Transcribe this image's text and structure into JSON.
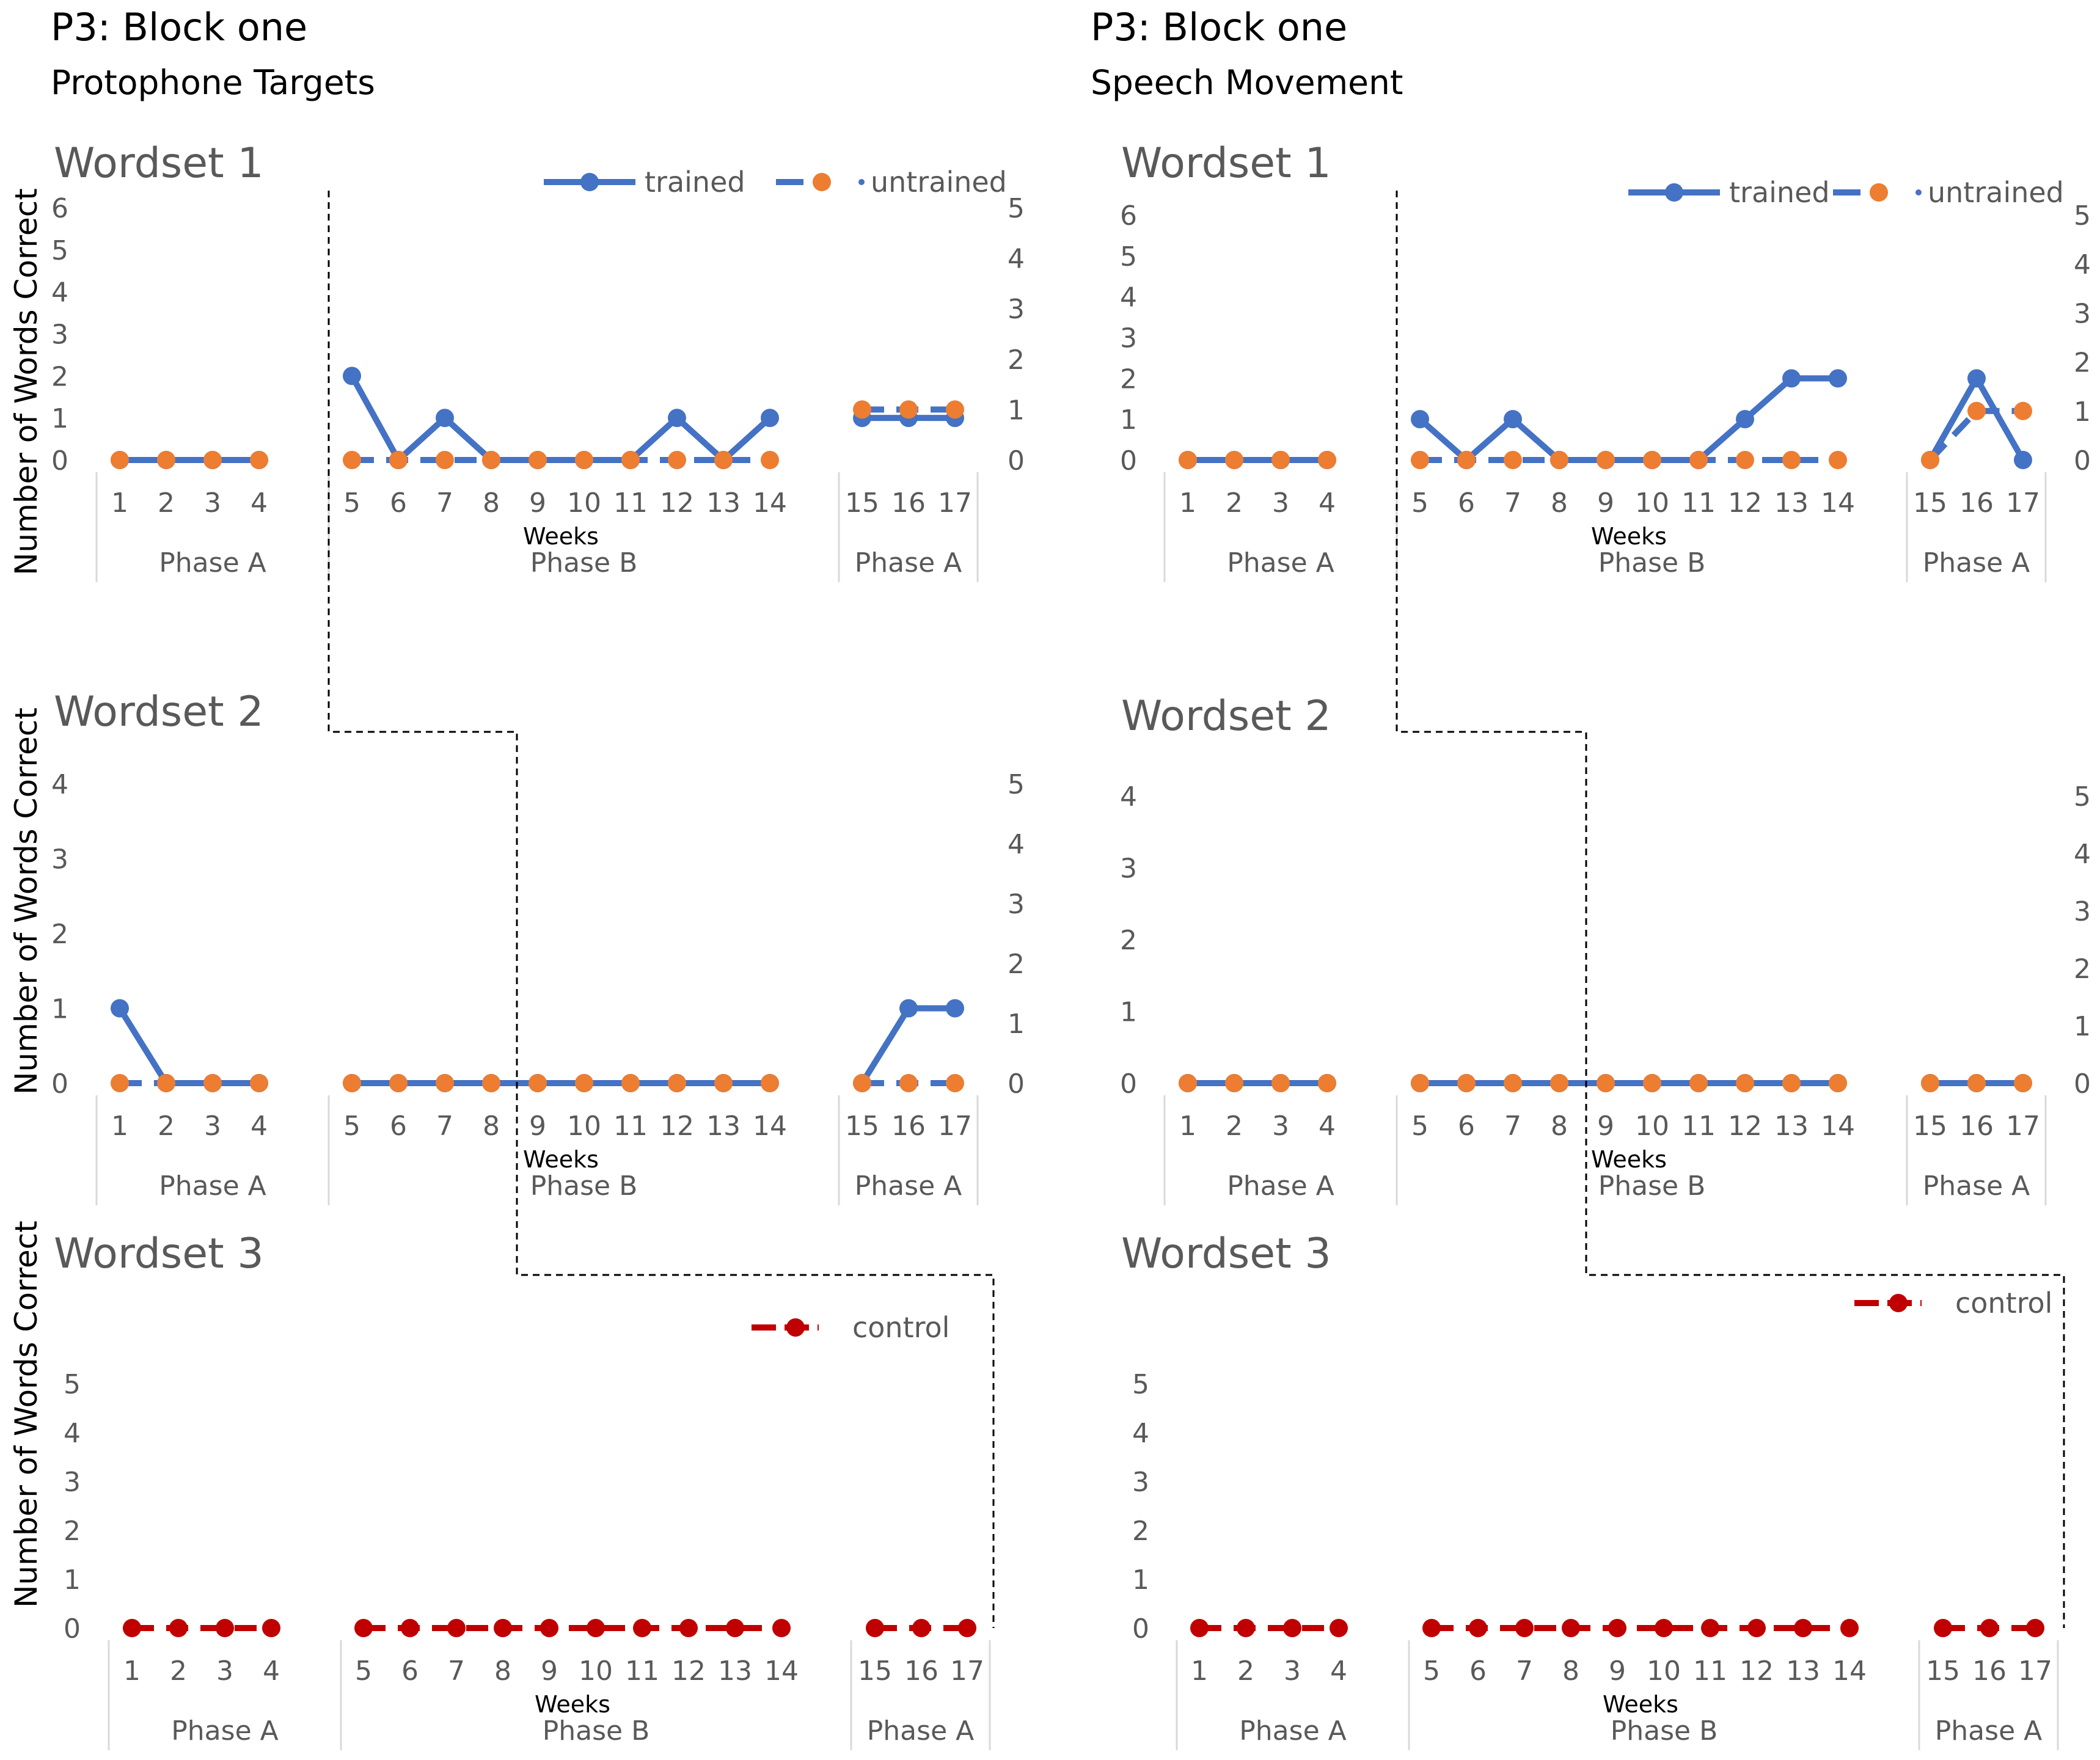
{
  "figure": {
    "left": {
      "heading": "P3: Block one",
      "subheading": "Protophone Targets"
    },
    "right": {
      "heading": "P3: Block one",
      "subheading": "Speech Movement"
    }
  },
  "colors": {
    "trained": "#4472C4",
    "untrained": "#ED7D31",
    "control": "#C00000",
    "axis_text": "#595959",
    "divider": "#D9D9D9"
  },
  "chart_data": [
    {
      "id": "pt-ws1",
      "type": "line",
      "title": "Wordset 1",
      "ylabel": "Number of Words Correct",
      "xlabel": "Weeks",
      "x": [
        1,
        2,
        3,
        4,
        5,
        6,
        7,
        8,
        9,
        10,
        11,
        12,
        13,
        14,
        15,
        16,
        17
      ],
      "x_tick_labels": [
        "1",
        "2",
        "3",
        "4",
        "5",
        "6",
        "7",
        "8",
        "9",
        "10",
        "11",
        "12",
        "13",
        "14",
        "15",
        "16",
        "17"
      ],
      "phases": [
        "Phase A",
        "Phase B",
        "Phase A"
      ],
      "ylim_left": [
        0,
        6
      ],
      "y_ticks_left": [
        "0",
        "1",
        "2",
        "3",
        "4",
        "5",
        "6"
      ],
      "ylim_right": [
        0,
        5
      ],
      "y_ticks_right": [
        "0",
        "1",
        "2",
        "3",
        "4",
        "5"
      ],
      "legend": [
        "trained",
        "untrained"
      ],
      "series": [
        {
          "name": "trained",
          "axis": "left",
          "values": [
            0,
            0,
            0,
            0,
            2,
            0,
            1,
            0,
            0,
            0,
            0,
            1,
            0,
            1,
            1,
            1,
            1
          ]
        },
        {
          "name": "untrained",
          "axis": "right",
          "values": [
            0,
            0,
            0,
            0,
            0,
            0,
            0,
            0,
            0,
            0,
            0,
            0,
            0,
            0,
            1,
            1,
            1
          ]
        }
      ]
    },
    {
      "id": "pt-ws2",
      "type": "line",
      "title": "Wordset 2",
      "ylabel": "Number of Words Correct",
      "xlabel": "Weeks",
      "x": [
        1,
        2,
        3,
        4,
        5,
        6,
        7,
        8,
        9,
        10,
        11,
        12,
        13,
        14,
        15,
        16,
        17
      ],
      "x_tick_labels": [
        "1",
        "2",
        "3",
        "4",
        "5",
        "6",
        "7",
        "8",
        "9",
        "10",
        "11",
        "12",
        "13",
        "14",
        "15",
        "16",
        "17"
      ],
      "phases": [
        "Phase A",
        "Phase B",
        "Phase A"
      ],
      "ylim_left": [
        0,
        4
      ],
      "y_ticks_left": [
        "0",
        "1",
        "2",
        "3",
        "4"
      ],
      "ylim_right": [
        0,
        5
      ],
      "y_ticks_right": [
        "0",
        "1",
        "2",
        "3",
        "4",
        "5"
      ],
      "legend": [],
      "series": [
        {
          "name": "trained",
          "axis": "left",
          "values": [
            1,
            0,
            0,
            0,
            0,
            0,
            0,
            0,
            0,
            0,
            0,
            0,
            0,
            0,
            0,
            1,
            1
          ]
        },
        {
          "name": "untrained",
          "axis": "right",
          "values": [
            0,
            0,
            0,
            0,
            0,
            0,
            0,
            0,
            0,
            0,
            0,
            0,
            0,
            0,
            0,
            0,
            0
          ]
        }
      ]
    },
    {
      "id": "pt-ws3",
      "type": "line",
      "title": "Wordset 3",
      "ylabel": "Number of Words Correct",
      "xlabel": "Weeks",
      "x": [
        1,
        2,
        3,
        4,
        5,
        6,
        7,
        8,
        9,
        10,
        11,
        12,
        13,
        14,
        15,
        16,
        17
      ],
      "x_tick_labels": [
        "1",
        "2",
        "3",
        "4",
        "5",
        "6",
        "7",
        "8",
        "9",
        "10",
        "11",
        "12",
        "13",
        "14",
        "15",
        "16",
        "17"
      ],
      "phases": [
        "Phase A",
        "Phase B",
        "Phase A"
      ],
      "ylim_left": [
        0,
        5
      ],
      "y_ticks_left": [
        "0",
        "1",
        "2",
        "3",
        "4",
        "5"
      ],
      "legend": [
        "control"
      ],
      "series": [
        {
          "name": "control",
          "axis": "left",
          "values": [
            0,
            0,
            0,
            0,
            0,
            0,
            0,
            0,
            0,
            0,
            0,
            0,
            0,
            0,
            0,
            0,
            0
          ]
        }
      ]
    },
    {
      "id": "sm-ws1",
      "type": "line",
      "title": "Wordset 1",
      "ylabel": "",
      "xlabel": "Weeks",
      "x": [
        1,
        2,
        3,
        4,
        5,
        6,
        7,
        8,
        9,
        10,
        11,
        12,
        13,
        14,
        15,
        16,
        17
      ],
      "x_tick_labels": [
        "1",
        "2",
        "3",
        "4",
        "5",
        "6",
        "7",
        "8",
        "9",
        "10",
        "11",
        "12",
        "13",
        "14",
        "15",
        "16",
        "17"
      ],
      "phases": [
        "Phase A",
        "Phase B",
        "Phase A"
      ],
      "ylim_left": [
        0,
        6
      ],
      "y_ticks_left": [
        "0",
        "1",
        "2",
        "3",
        "4",
        "5",
        "6"
      ],
      "ylim_right": [
        0,
        5
      ],
      "y_ticks_right": [
        "0",
        "1",
        "2",
        "3",
        "4",
        "5"
      ],
      "legend": [
        "trained",
        "untrained"
      ],
      "series": [
        {
          "name": "trained",
          "axis": "left",
          "values": [
            0,
            0,
            0,
            0,
            1,
            0,
            1,
            0,
            0,
            0,
            0,
            1,
            2,
            2,
            0,
            2,
            0
          ]
        },
        {
          "name": "untrained",
          "axis": "right",
          "values": [
            0,
            0,
            0,
            0,
            0,
            0,
            0,
            0,
            0,
            0,
            0,
            0,
            0,
            0,
            0,
            1,
            1
          ]
        }
      ]
    },
    {
      "id": "sm-ws2",
      "type": "line",
      "title": "Wordset 2",
      "ylabel": "",
      "xlabel": "Weeks",
      "x": [
        1,
        2,
        3,
        4,
        5,
        6,
        7,
        8,
        9,
        10,
        11,
        12,
        13,
        14,
        15,
        16,
        17
      ],
      "x_tick_labels": [
        "1",
        "2",
        "3",
        "4",
        "5",
        "6",
        "7",
        "8",
        "9",
        "10",
        "11",
        "12",
        "13",
        "14",
        "15",
        "16",
        "17"
      ],
      "phases": [
        "Phase A",
        "Phase B",
        "Phase A"
      ],
      "ylim_left": [
        0,
        4
      ],
      "y_ticks_left": [
        "0",
        "1",
        "2",
        "3",
        "4"
      ],
      "ylim_right": [
        0,
        5
      ],
      "y_ticks_right": [
        "0",
        "1",
        "2",
        "3",
        "4",
        "5"
      ],
      "legend": [],
      "series": [
        {
          "name": "trained",
          "axis": "left",
          "values": [
            0,
            0,
            0,
            0,
            0,
            0,
            0,
            0,
            0,
            0,
            0,
            0,
            0,
            0,
            0,
            0,
            0
          ]
        },
        {
          "name": "untrained",
          "axis": "right",
          "values": [
            0,
            0,
            0,
            0,
            0,
            0,
            0,
            0,
            0,
            0,
            0,
            0,
            0,
            0,
            0,
            0,
            0
          ]
        }
      ]
    },
    {
      "id": "sm-ws3",
      "type": "line",
      "title": "Wordset 3",
      "ylabel": "",
      "xlabel": "Weeks",
      "x": [
        1,
        2,
        3,
        4,
        5,
        6,
        7,
        8,
        9,
        10,
        11,
        12,
        13,
        14,
        15,
        16,
        17
      ],
      "x_tick_labels": [
        "1",
        "2",
        "3",
        "4",
        "5",
        "6",
        "7",
        "8",
        "9",
        "10",
        "11",
        "12",
        "13",
        "14",
        "15",
        "16",
        "17"
      ],
      "phases": [
        "Phase A",
        "Phase B",
        "Phase A"
      ],
      "ylim_left": [
        0,
        5
      ],
      "y_ticks_left": [
        "0",
        "1",
        "2",
        "3",
        "4",
        "5"
      ],
      "legend": [
        "control"
      ],
      "series": [
        {
          "name": "control",
          "axis": "left",
          "values": [
            0,
            0,
            0,
            0,
            0,
            0,
            0,
            0,
            0,
            0,
            0,
            0,
            0,
            0,
            0,
            0,
            0
          ]
        }
      ]
    }
  ]
}
